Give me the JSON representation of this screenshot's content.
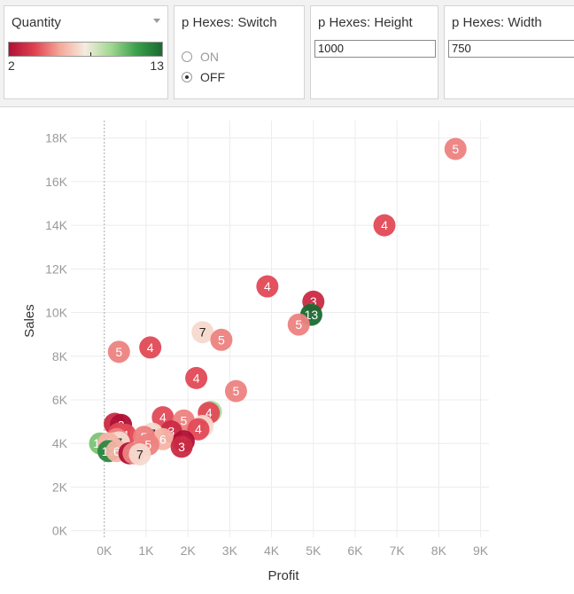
{
  "filters": {
    "quantity_legend": {
      "title": "Quantity",
      "min_label": "2",
      "max_label": "13",
      "colors": [
        "#b01035",
        "#e0404f",
        "#f5a89a",
        "#f5ece0",
        "#a0d890",
        "#3aa04a",
        "#1a6a32"
      ]
    },
    "switch_param": {
      "title": "p Hexes: Switch",
      "options": [
        "ON",
        "OFF"
      ],
      "selected": "OFF"
    },
    "height_param": {
      "title": "p Hexes: Height",
      "value": "1000"
    },
    "width_param": {
      "title": "p Hexes: Width",
      "value": "750"
    }
  },
  "chart_data": {
    "type": "scatter",
    "title": "",
    "xlabel": "Profit",
    "ylabel": "Sales",
    "xlim": [
      -800,
      9200
    ],
    "ylim": [
      -300,
      18800
    ],
    "x_ticks": [
      0,
      1000,
      2000,
      3000,
      4000,
      5000,
      6000,
      7000,
      8000,
      9000
    ],
    "x_tick_labels": [
      "0K",
      "1K",
      "2K",
      "3K",
      "4K",
      "5K",
      "6K",
      "7K",
      "8K",
      "9K"
    ],
    "y_ticks": [
      0,
      2000,
      4000,
      6000,
      8000,
      10000,
      12000,
      14000,
      16000,
      18000
    ],
    "y_tick_labels": [
      "0K",
      "2K",
      "4K",
      "6K",
      "8K",
      "10K",
      "12K",
      "14K",
      "16K",
      "18K"
    ],
    "grid": true,
    "zero_line": true,
    "color_by": "Quantity",
    "color_range": [
      2,
      13
    ],
    "points": [
      {
        "x": 8400,
        "y": 17500,
        "q": 5
      },
      {
        "x": 6700,
        "y": 14000,
        "q": 4
      },
      {
        "x": 3900,
        "y": 11200,
        "q": 4
      },
      {
        "x": 5000,
        "y": 10500,
        "q": 3
      },
      {
        "x": 4950,
        "y": 9900,
        "q": 13
      },
      {
        "x": 4650,
        "y": 9450,
        "q": 5
      },
      {
        "x": 2350,
        "y": 9100,
        "q": 7
      },
      {
        "x": 2800,
        "y": 8750,
        "q": 5
      },
      {
        "x": 1100,
        "y": 8400,
        "q": 4
      },
      {
        "x": 350,
        "y": 8200,
        "q": 5
      },
      {
        "x": 2200,
        "y": 7000,
        "q": 4
      },
      {
        "x": 3150,
        "y": 6400,
        "q": 5
      },
      {
        "x": 2550,
        "y": 5450,
        "q": 9
      },
      {
        "x": 2500,
        "y": 5400,
        "q": 4
      },
      {
        "x": 1400,
        "y": 5200,
        "q": 4
      },
      {
        "x": 1900,
        "y": 5050,
        "q": 5
      },
      {
        "x": 2350,
        "y": 4800,
        "q": 7
      },
      {
        "x": 2250,
        "y": 4650,
        "q": 4
      },
      {
        "x": 1600,
        "y": 4550,
        "q": 3
      },
      {
        "x": 1150,
        "y": 4450,
        "q": 7
      },
      {
        "x": 1400,
        "y": 4200,
        "q": 6
      },
      {
        "x": 1900,
        "y": 4100,
        "q": 2
      },
      {
        "x": 1850,
        "y": 3850,
        "q": 3
      },
      {
        "x": 250,
        "y": 4900,
        "q": 3
      },
      {
        "x": 400,
        "y": 4850,
        "q": 2
      },
      {
        "x": 350,
        "y": 4450,
        "q": 4
      },
      {
        "x": 500,
        "y": 4400,
        "q": 4
      },
      {
        "x": 950,
        "y": 4300,
        "q": 5
      },
      {
        "x": 300,
        "y": 4200,
        "q": 5
      },
      {
        "x": 200,
        "y": 4000,
        "q": 8
      },
      {
        "x": 350,
        "y": 4050,
        "q": 7
      },
      {
        "x": -100,
        "y": 4000,
        "q": 10
      },
      {
        "x": 100,
        "y": 4000,
        "q": 6
      },
      {
        "x": 1050,
        "y": 3950,
        "q": 5
      },
      {
        "x": 100,
        "y": 3650,
        "q": 12
      },
      {
        "x": 300,
        "y": 3650,
        "q": 6
      },
      {
        "x": 600,
        "y": 3550,
        "q": 2
      },
      {
        "x": 700,
        "y": 3550,
        "q": 5
      },
      {
        "x": 850,
        "y": 3500,
        "q": 7
      }
    ]
  }
}
